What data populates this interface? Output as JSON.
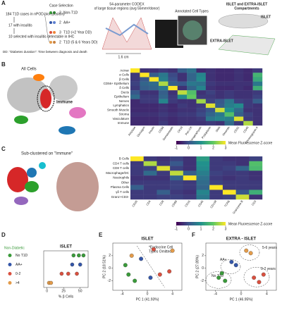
{
  "panel_labels": [
    "A",
    "B",
    "C",
    "D",
    "E",
    "F"
  ],
  "panel_a": {
    "case_selection_title": "Case Selection",
    "steps": [
      "184 T1D cases in nPOD biorepository",
      "17 with insulitis",
      "10 selected with insulitis detectable in IHC"
    ],
    "groups": [
      {
        "count": 3,
        "label": "Non-T1D"
      },
      {
        "count": 2,
        "label": "AA+"
      },
      {
        "count": 3,
        "label": "T1D (<2 Year DD)"
      },
      {
        "count": 2,
        "label": "T1D (5 & 6 Years DD)"
      }
    ],
    "footnote": "DD: \"Diabetes duration\": Time between diagnosis and death",
    "codex": [
      "54-parameter CODEX",
      "of large tissue regions (avg 55mm²/donor)"
    ],
    "scale": "1.6 cm",
    "annotated": "Annotated Cell Types",
    "compartments": [
      "ISLET and EXTRA-ISLET",
      "Compartments"
    ],
    "islet": "ISLET",
    "extra_islet": "EXTRA-ISLET"
  },
  "panel_b": {
    "umap_title": "All Cells",
    "immune": "Immune"
  },
  "panel_c": {
    "umap_title": "Sub-clustered on \"Immune\""
  },
  "chart_data": [
    {
      "type": "heatmap",
      "colormap": [
        "#440154",
        "#3b528b",
        "#21918c",
        "#5ec962",
        "#fde725"
      ],
      "zlim": [
        -1,
        3
      ],
      "zticks": [
        -1,
        0,
        1,
        2,
        3
      ],
      "colorbar_label": "Mean Fluorescence Z-score",
      "rows": [
        "Acinar",
        "α Cells",
        "β Cells",
        "CD56+ Epithelium",
        "δ Cells",
        "Ducts",
        "Epithelium",
        "Nerves",
        "Lymphatics",
        "Smooth Muscle",
        "Stroma",
        "Vasculature",
        "Immune"
      ],
      "columns": [
        "Amylase",
        "Glucagon",
        "Insulin",
        "CD56",
        "Somatostatin",
        "CK19",
        "Pan-CK",
        "Synaptophysin",
        "Podoplanin",
        "SMA",
        "Vimentin",
        "CD31",
        "CD45",
        "Chromogranin A"
      ],
      "values": [
        [
          3,
          -0.4,
          -0.4,
          -0.3,
          -0.4,
          0.2,
          0.5,
          -0.5,
          -0.4,
          -0.5,
          -0.5,
          -0.4,
          -0.5,
          -0.3
        ],
        [
          -0.3,
          3,
          0.2,
          0.6,
          -0.1,
          -0.4,
          0.3,
          0.8,
          -0.4,
          -0.5,
          -0.5,
          -0.4,
          -0.5,
          1.6
        ],
        [
          -0.3,
          0.1,
          3,
          0.7,
          0,
          -0.4,
          0.3,
          0.9,
          -0.4,
          -0.5,
          -0.5,
          -0.4,
          -0.5,
          1.4
        ],
        [
          -0.2,
          0.3,
          0.4,
          2.5,
          0.2,
          0.1,
          0.6,
          0.5,
          -0.3,
          -0.4,
          -0.4,
          -0.4,
          -0.4,
          0.6
        ],
        [
          -0.3,
          0.2,
          0.3,
          0.6,
          3,
          -0.4,
          0.3,
          0.8,
          -0.4,
          -0.5,
          -0.5,
          -0.4,
          -0.5,
          1.5
        ],
        [
          0.1,
          -0.4,
          -0.4,
          0.2,
          -0.4,
          2.6,
          1.8,
          -0.4,
          -0.2,
          -0.4,
          -0.3,
          -0.4,
          -0.4,
          -0.3
        ],
        [
          0.4,
          -0.3,
          -0.3,
          0.3,
          -0.3,
          0.9,
          2,
          -0.3,
          -0.3,
          -0.4,
          -0.3,
          -0.4,
          -0.4,
          -0.2
        ],
        [
          -0.5,
          -0.3,
          -0.3,
          0.8,
          -0.3,
          -0.4,
          -0.4,
          2.4,
          -0.2,
          0.1,
          0.6,
          -0.2,
          -0.3,
          0.2
        ],
        [
          -0.5,
          -0.5,
          -0.5,
          -0.4,
          -0.5,
          -0.3,
          -0.4,
          -0.3,
          2.8,
          0.2,
          0.7,
          0.9,
          -0.3,
          -0.4
        ],
        [
          -0.5,
          -0.5,
          -0.5,
          -0.4,
          -0.5,
          -0.4,
          -0.4,
          -0.2,
          0.1,
          2.7,
          1,
          0.4,
          -0.4,
          -0.4
        ],
        [
          -0.4,
          -0.4,
          -0.4,
          -0.3,
          -0.4,
          -0.3,
          -0.3,
          -0.1,
          0.3,
          0.6,
          1.8,
          0.2,
          -0.2,
          -0.4
        ],
        [
          -0.5,
          -0.5,
          -0.5,
          -0.4,
          -0.5,
          -0.4,
          -0.4,
          -0.3,
          0.6,
          0.8,
          0.7,
          2.8,
          -0.3,
          -0.4
        ],
        [
          -0.5,
          -0.5,
          -0.5,
          -0.3,
          -0.5,
          -0.4,
          -0.4,
          -0.4,
          -0.3,
          -0.4,
          0.4,
          -0.3,
          2.5,
          -0.4
        ]
      ]
    },
    {
      "type": "heatmap",
      "colormap": [
        "#440154",
        "#3b528b",
        "#21918c",
        "#5ec962",
        "#fde725"
      ],
      "zlim": [
        -1,
        3
      ],
      "zticks": [
        -1,
        0,
        1,
        2,
        3
      ],
      "colorbar_label": "Mean Fluorescence Z-score",
      "rows": [
        "B Cells",
        "CD4 T cells",
        "CD8 T cells",
        "Macrophage/DC",
        "Neutrophils",
        "Other",
        "Plasma Cells",
        "γδ T cells",
        "Granz+CD3-"
      ],
      "columns": [
        "CD20",
        "CD4",
        "CD8",
        "CD68",
        "CD15",
        "CD45",
        "CD138",
        "TCRδ",
        "Granzyme B",
        "CD3"
      ],
      "values": [
        [
          3,
          -0.3,
          -0.4,
          -0.2,
          -0.4,
          1.2,
          -0.3,
          -0.4,
          -0.4,
          -0.2
        ],
        [
          -0.3,
          2.5,
          -0.3,
          0.1,
          -0.4,
          1,
          -0.3,
          -0.3,
          -0.4,
          1.8
        ],
        [
          -0.3,
          -0.2,
          2.8,
          -0.2,
          -0.4,
          0.9,
          -0.3,
          -0.2,
          0.3,
          1.7
        ],
        [
          -0.3,
          0.4,
          -0.3,
          2.6,
          0.2,
          0.7,
          -0.2,
          -0.3,
          -0.3,
          -0.4
        ],
        [
          -0.4,
          -0.4,
          -0.4,
          0.3,
          3,
          0.5,
          -0.3,
          -0.4,
          -0.3,
          -0.4
        ],
        [
          -0.3,
          -0.3,
          -0.3,
          -0.2,
          -0.3,
          0.4,
          -0.2,
          -0.3,
          -0.3,
          -0.3
        ],
        [
          0.2,
          -0.3,
          -0.3,
          -0.2,
          -0.3,
          0.3,
          3,
          -0.3,
          -0.3,
          -0.3
        ],
        [
          -0.3,
          -0.3,
          0.2,
          -0.3,
          -0.4,
          0.8,
          -0.3,
          3,
          0.1,
          1.5
        ],
        [
          -0.3,
          -0.3,
          -0.2,
          -0.2,
          -0.3,
          0.6,
          -0.3,
          -0.2,
          2.7,
          -0.4
        ]
      ]
    },
    {
      "type": "strip",
      "title": "ISLET",
      "group_header": "Non-Diabetic",
      "xlabel": "% β Cells",
      "xlim": [
        -5,
        62
      ],
      "xticks": [
        0,
        25,
        50
      ],
      "series": [
        {
          "name": "No T1D",
          "color": "#3a9a3a",
          "values": [
            40,
            48,
            55
          ]
        },
        {
          "name": "AA+",
          "color": "#3456a8",
          "values": [
            38,
            50
          ]
        },
        {
          "name": "0-2",
          "color": "#d9503f",
          "values": [
            22,
            32,
            45
          ]
        },
        {
          "name": ">4",
          "color": "#e39b4a",
          "values": [
            3,
            6
          ]
        }
      ]
    },
    {
      "type": "scatter",
      "title": "ISLET",
      "xlabel": "PC 1 (41.93%)",
      "ylabel": "PC 2 (18.51%)",
      "annotations": [
        "*Endocrine Cell",
        "Types Omitted"
      ],
      "xlim": [
        -5.5,
        5.5
      ],
      "ylim": [
        -3.5,
        4
      ],
      "xticks": [
        -4,
        0,
        4
      ],
      "yticks": [
        -2,
        0,
        2
      ],
      "series": [
        {
          "color": "#3a9a3a",
          "x": [
            -3.5,
            -2,
            -3
          ],
          "values": [
            0.5,
            -2,
            -1
          ]
        },
        {
          "color": "#3456a8",
          "x": [
            -1,
            0.5
          ],
          "values": [
            1.5,
            -1.5
          ]
        },
        {
          "color": "#d9503f",
          "x": [
            2,
            3.5,
            1
          ],
          "values": [
            -1,
            -0.5,
            3
          ]
        },
        {
          "color": "#e39b4a",
          "x": [
            4,
            -2.5
          ],
          "values": [
            2.8,
            2
          ]
        }
      ]
    },
    {
      "type": "scatter",
      "title": "EXTRA - ISLET",
      "xlabel": "PC 1 (46.95%)",
      "ylabel": "PC 2 (27.89%)",
      "annotations": [
        "5-6 years",
        "AA+",
        "0-2 years",
        "No T1D"
      ],
      "xlim": [
        -5.5,
        5.5
      ],
      "ylim": [
        -3.5,
        4
      ],
      "xticks": [
        -4,
        0,
        4
      ],
      "yticks": [
        -2,
        0,
        2
      ],
      "series": [
        {
          "color": "#3a9a3a",
          "x": [
            -3.5,
            -2.5,
            -3
          ],
          "values": [
            -1.5,
            -2,
            -0.8
          ]
        },
        {
          "color": "#3456a8",
          "x": [
            -1.5,
            -0.8
          ],
          "values": [
            1,
            0.5
          ]
        },
        {
          "color": "#d9503f",
          "x": [
            2,
            3.5,
            2.8
          ],
          "values": [
            -1.5,
            -1,
            -2.2
          ]
        },
        {
          "color": "#e39b4a",
          "x": [
            0.8,
            1.5
          ],
          "values": [
            2.8,
            2.4
          ]
        }
      ]
    }
  ]
}
